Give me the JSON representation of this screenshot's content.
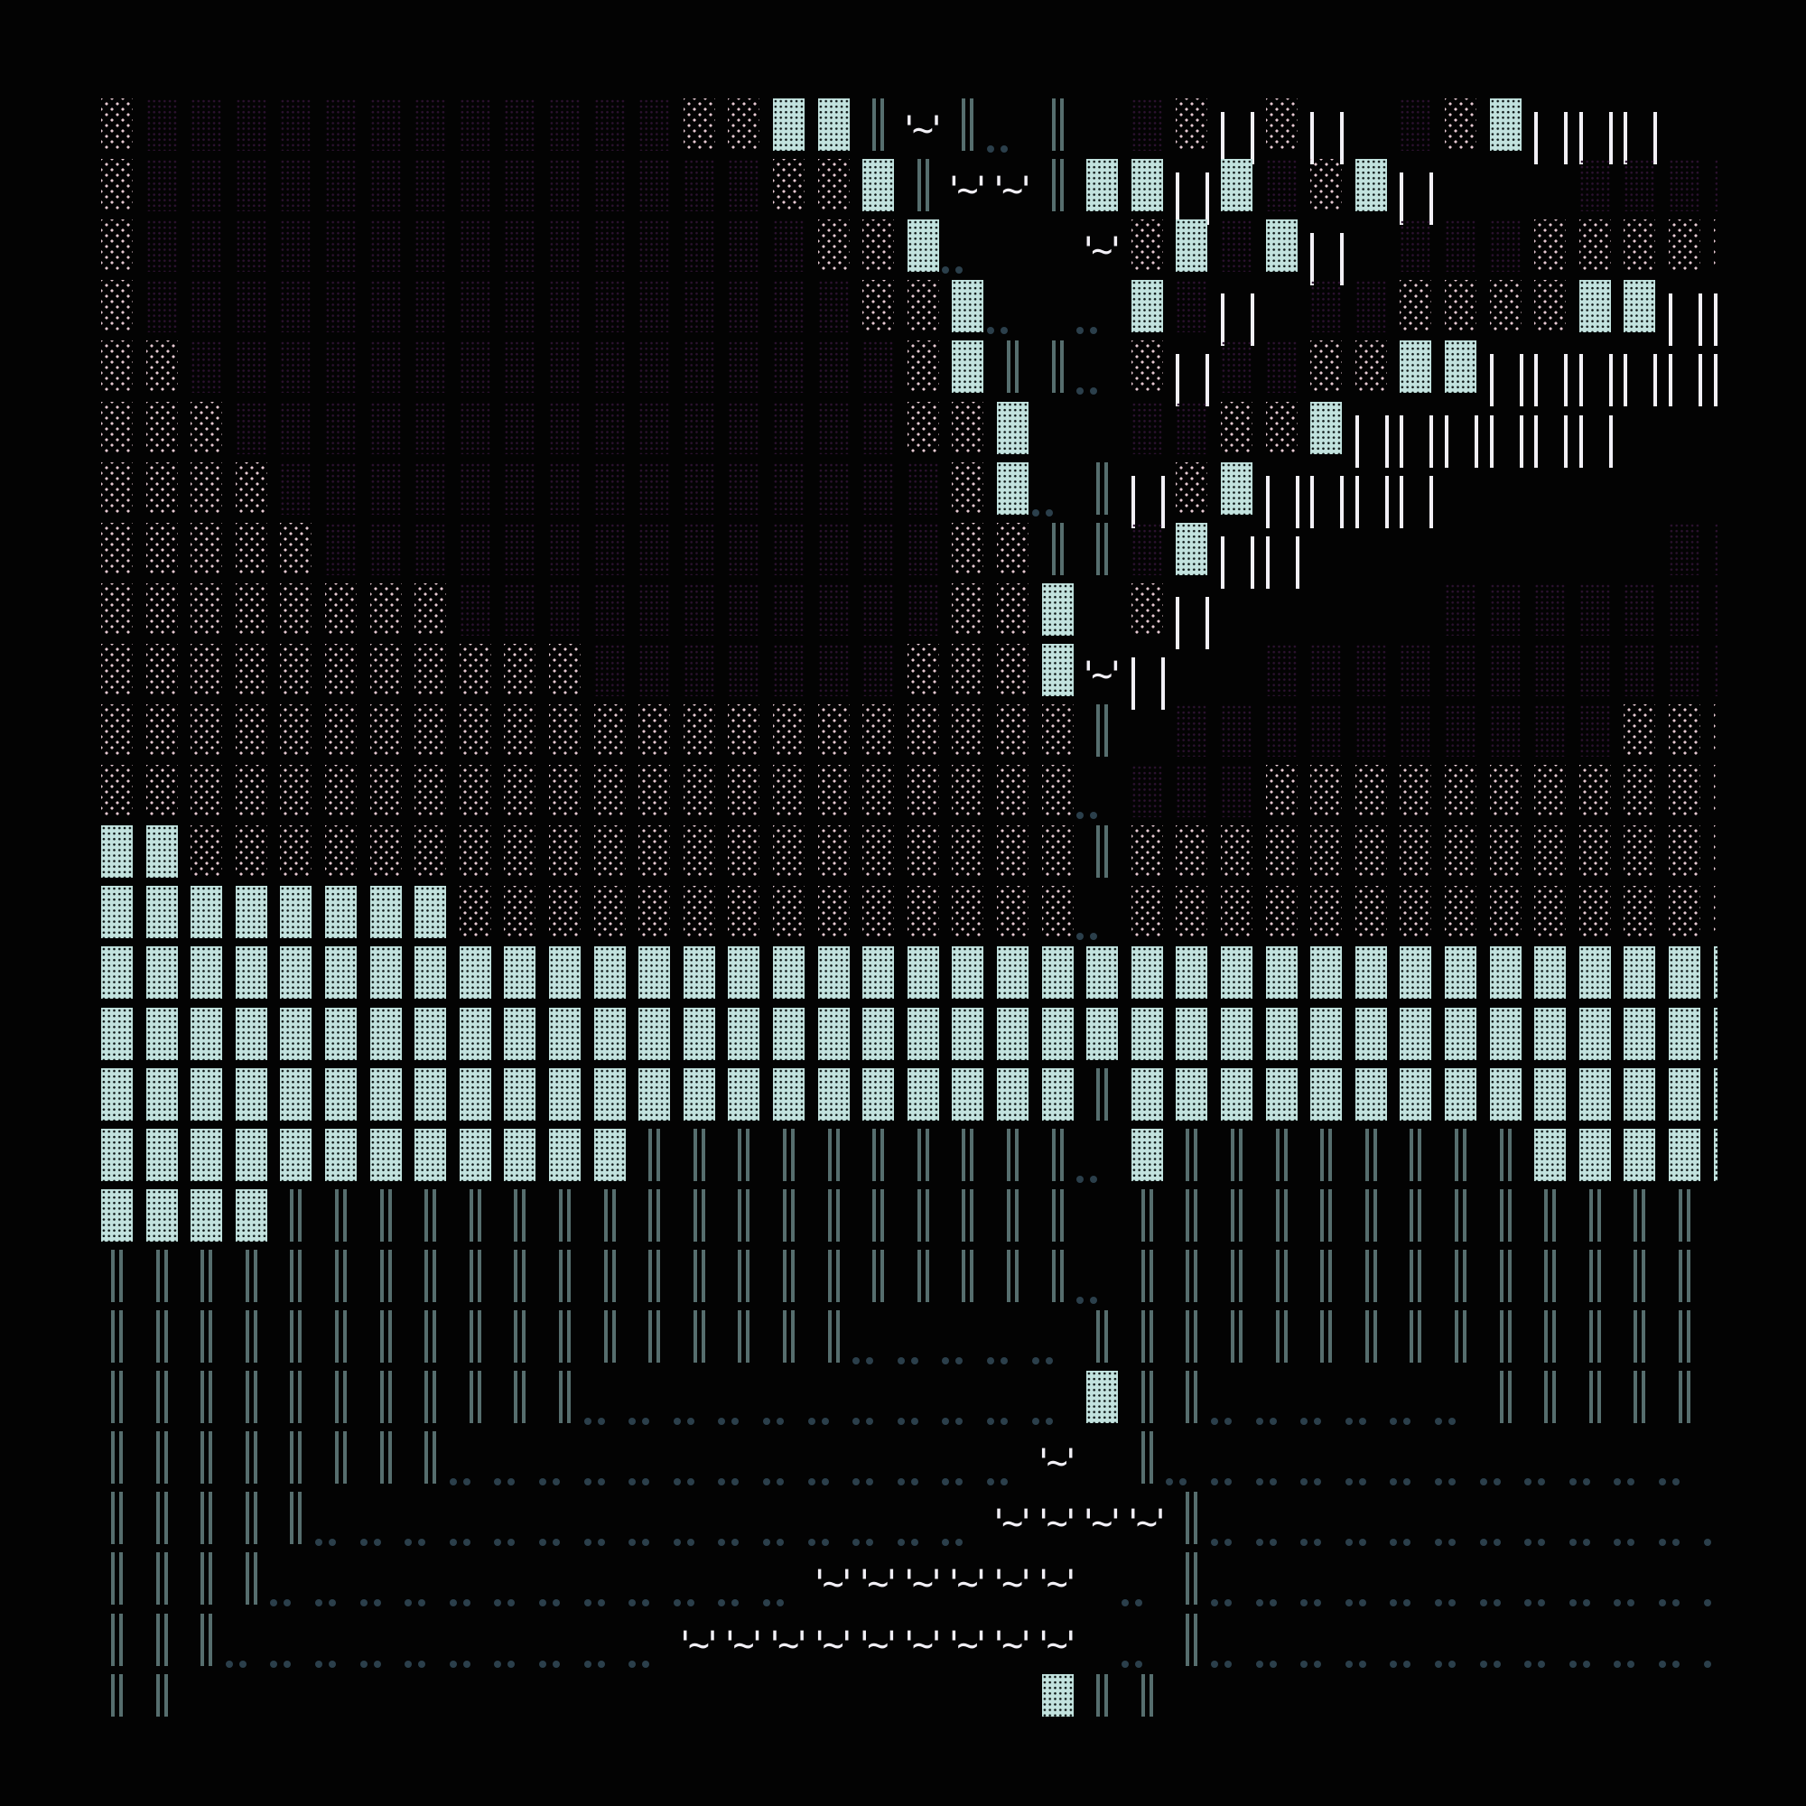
{
  "palette": {
    "background": "#030303",
    "dense_shade": "#2c1230",
    "light_shade": "#e6c9d2",
    "block": "#c2e2de",
    "double_bar": "#566e6e",
    "white": "#f2f0f6",
    "dots": "#2b3f4b"
  },
  "glyph_text": {
    "wave": "'~'"
  },
  "rows": [
    "pddddddddddddppBBHwHoH.dpIpI.dpBIII..",
    "pddddddddddddddppBHwwHBBIBdpBI...dddd",
    "pdddddddddddddddppBo..wpBdBI.dddppppp",
    "pddddddddddddddddppBo.oBdI.ddppppBBII",
    "ppddddddddddddddddpBHHopIddppBBIIIIII",
    "pppdddddddddddddddppB..ddppBIIIIII...",
    "ppppdddddddddddddddpBoHIpBIIII.......",
    "pppppddddddddddddddppHHdBII........dd",
    "ppppppppdddddddddddppB.pI.....ddddddd",
    "pppppppppppdddddddpppBwI..ddddddddddd",
    "ppppppppppppppppppppppH.ddddddddddppp",
    "ppppppppppppppppppppppodddppppppppppp",
    "BBppppppppppppppppppppHpppppppppppppp",
    "BBBBBBBBppppppppppppppopppppppppppppp",
    "BBBBBBBBBBBBBBBBBBBBBBBBBBBBBBBBBBBBB",
    "BBBBBBBBBBBBBBBBBBBBBBBBBBBBBBBBBBBBB",
    "BBBBBBBBBBBBBBBBBBBBBBHBBBBBBBBBBBBBB",
    "BBBBBBBBBBBBHHHHHHHHHHoBHHHHHHHHBBBBB",
    "BBBBHHHHHHHHHHHHHHHHHH.HHHHHHHHHHHHH.",
    "HHHHHHHHHHHHHHHHHHHHHHoHHHHHHHHHHHHH.",
    "HHHHHHHHHHHHHHHHHoooooHHHHHHHHHHHHHH.",
    "HHHHHHHHHHHoooooooooooBHHooooooHHHHH.",
    "HHHHHHHHooooooooooooow.Hoooooooooooo.",
    "HHHHHooooooooooooooowwwwHooooooooooooo",
    "HHHHoooooooooooowwwwww.oHooooooooooooo",
    "HHHoooooooooowwwwwwwww.oHooooooooooooo",
    "HH........xxxxxxxxx..BHH..xxxxx......"
  ]
}
